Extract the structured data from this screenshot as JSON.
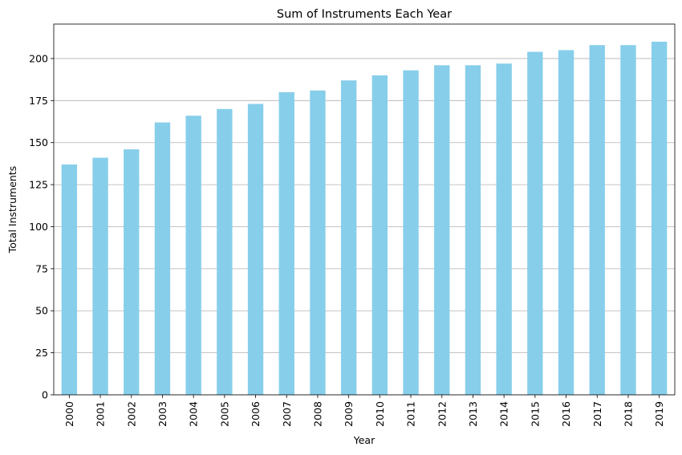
{
  "chart_data": {
    "type": "bar",
    "title": "Sum of Instruments Each Year",
    "xlabel": "Year",
    "ylabel": "Total Instruments",
    "categories": [
      "2000",
      "2001",
      "2002",
      "2003",
      "2004",
      "2005",
      "2006",
      "2007",
      "2008",
      "2009",
      "2010",
      "2011",
      "2012",
      "2013",
      "2014",
      "2015",
      "2016",
      "2017",
      "2018",
      "2019"
    ],
    "values": [
      137,
      141,
      146,
      162,
      166,
      170,
      173,
      180,
      181,
      187,
      190,
      193,
      196,
      196,
      197,
      204,
      205,
      208,
      208,
      210
    ],
    "ylim": [
      0,
      220.5
    ],
    "yticks": [
      0,
      25,
      50,
      75,
      100,
      125,
      150,
      175,
      200
    ],
    "grid": "y-axis",
    "legend": "none",
    "bar_color": "#87ceeb",
    "grid_color": "#b0b0b0"
  }
}
